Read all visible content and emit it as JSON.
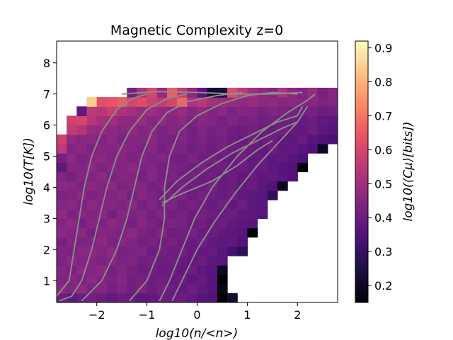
{
  "chart_data": {
    "type": "heatmap",
    "title": "Magnetic Complexity z=0",
    "xlabel": "log10(n/<n>)",
    "ylabel": "log10(T[K])",
    "colorbar_label": "log10(⟨Cμ⟩[bits])",
    "colormap": "magma",
    "xlim": [
      -2.8,
      2.8
    ],
    "ylim": [
      0.3,
      8.7
    ],
    "clim": [
      0.15,
      0.92
    ],
    "x_ticks": [
      -2,
      -1,
      0,
      1,
      2
    ],
    "x_tick_labels": [
      "−2",
      "−1",
      "0",
      "1",
      "2"
    ],
    "y_ticks": [
      1,
      2,
      3,
      4,
      5,
      6,
      7,
      8
    ],
    "y_tick_labels": [
      "1",
      "2",
      "3",
      "4",
      "5",
      "6",
      "7",
      "8"
    ],
    "colorbar_ticks": [
      0.2,
      0.3,
      0.4,
      0.5,
      0.6,
      0.7,
      0.8,
      0.9
    ],
    "colorbar_tick_labels": [
      "0.2",
      "0.3",
      "0.4",
      "0.5",
      "0.6",
      "0.7",
      "0.8",
      "0.9"
    ],
    "bin_x_start": -2.8,
    "bin_x_width": 0.2,
    "bin_y_start": 0.3,
    "bin_y_width": 0.3,
    "rows": [
      {
        "T": 0.45,
        "i0": 0,
        "v": [
          0.4,
          0.38,
          0.4,
          0.42,
          0.4,
          0.38,
          0.4,
          0.39,
          0.37,
          0.38,
          0.4,
          0.39,
          0.4,
          0.38,
          0.36,
          0.35,
          0.15,
          0.22
        ]
      },
      {
        "T": 0.75,
        "i0": 0,
        "v": [
          0.46,
          0.44,
          0.46,
          0.43,
          0.45,
          0.42,
          0.44,
          0.41,
          0.43,
          0.4,
          0.42,
          0.4,
          0.38,
          0.4,
          0.38,
          0.36,
          0.18
        ]
      },
      {
        "T": 1.05,
        "i0": 0,
        "v": [
          0.44,
          0.45,
          0.43,
          0.46,
          0.44,
          0.43,
          0.45,
          0.41,
          0.42,
          0.4,
          0.41,
          0.39,
          0.4,
          0.37,
          0.39,
          0.36,
          0.15
        ]
      },
      {
        "T": 1.35,
        "i0": 0,
        "v": [
          0.45,
          0.43,
          0.46,
          0.44,
          0.46,
          0.42,
          0.44,
          0.42,
          0.4,
          0.41,
          0.39,
          0.4,
          0.38,
          0.4,
          0.37,
          0.36,
          0.2
        ]
      },
      {
        "T": 1.65,
        "i0": 0,
        "v": [
          0.43,
          0.46,
          0.44,
          0.45,
          0.43,
          0.45,
          0.43,
          0.44,
          0.41,
          0.42,
          0.4,
          0.41,
          0.39,
          0.38,
          0.4,
          0.37,
          0.36
        ]
      },
      {
        "T": 1.95,
        "i0": 0,
        "v": [
          0.44,
          0.43,
          0.45,
          0.46,
          0.44,
          0.46,
          0.42,
          0.43,
          0.44,
          0.4,
          0.42,
          0.4,
          0.41,
          0.39,
          0.38,
          0.39,
          0.36,
          0.32,
          0.28
        ]
      },
      {
        "T": 2.25,
        "i0": 0,
        "v": [
          0.42,
          0.45,
          0.43,
          0.44,
          0.46,
          0.43,
          0.45,
          0.44,
          0.42,
          0.43,
          0.41,
          0.42,
          0.4,
          0.39,
          0.41,
          0.38,
          0.37,
          0.38,
          0.35
        ]
      },
      {
        "T": 2.55,
        "i0": 0,
        "v": [
          0.46,
          0.44,
          0.46,
          0.42,
          0.45,
          0.44,
          0.43,
          0.46,
          0.43,
          0.42,
          0.44,
          0.4,
          0.41,
          0.42,
          0.39,
          0.4,
          0.38,
          0.37,
          0.36,
          0.15
        ]
      },
      {
        "T": 2.85,
        "i0": 0,
        "v": [
          0.44,
          0.46,
          0.42,
          0.45,
          0.43,
          0.46,
          0.44,
          0.42,
          0.45,
          0.43,
          0.41,
          0.43,
          0.42,
          0.4,
          0.41,
          0.39,
          0.4,
          0.38,
          0.37,
          0.36
        ]
      },
      {
        "T": 3.15,
        "i0": 0,
        "v": [
          0.47,
          0.43,
          0.45,
          0.44,
          0.46,
          0.42,
          0.45,
          0.43,
          0.44,
          0.42,
          0.44,
          0.41,
          0.42,
          0.4,
          0.42,
          0.4,
          0.39,
          0.4,
          0.38,
          0.37,
          0.36
        ]
      },
      {
        "T": 3.45,
        "i0": 0,
        "v": [
          0.45,
          0.46,
          0.43,
          0.46,
          0.44,
          0.45,
          0.43,
          0.46,
          0.42,
          0.44,
          0.42,
          0.43,
          0.4,
          0.42,
          0.41,
          0.39,
          0.41,
          0.38,
          0.4,
          0.37,
          0.36
        ]
      },
      {
        "T": 3.75,
        "i0": 0,
        "v": [
          0.43,
          0.44,
          0.46,
          0.43,
          0.45,
          0.44,
          0.46,
          0.42,
          0.45,
          0.43,
          0.41,
          0.42,
          0.43,
          0.4,
          0.42,
          0.4,
          0.39,
          0.41,
          0.38,
          0.37,
          0.36,
          0.28
        ]
      },
      {
        "T": 4.05,
        "i0": 0,
        "v": [
          0.46,
          0.45,
          0.43,
          0.46,
          0.44,
          0.46,
          0.43,
          0.45,
          0.44,
          0.42,
          0.43,
          0.41,
          0.42,
          0.41,
          0.4,
          0.42,
          0.39,
          0.4,
          0.38,
          0.39,
          0.37,
          0.35,
          0.2
        ]
      },
      {
        "T": 4.35,
        "i0": 0,
        "v": [
          0.44,
          0.42,
          0.45,
          0.44,
          0.46,
          0.43,
          0.45,
          0.44,
          0.42,
          0.45,
          0.42,
          0.43,
          0.41,
          0.42,
          0.4,
          0.41,
          0.39,
          0.4,
          0.38,
          0.39,
          0.37,
          0.38,
          0.36,
          0.35
        ]
      },
      {
        "T": 4.65,
        "i0": 0,
        "v": [
          0.38,
          0.45,
          0.44,
          0.46,
          0.43,
          0.45,
          0.44,
          0.46,
          0.43,
          0.44,
          0.42,
          0.43,
          0.42,
          0.4,
          0.42,
          0.4,
          0.41,
          0.39,
          0.4,
          0.38,
          0.39,
          0.37,
          0.36,
          0.35,
          0.14
        ]
      },
      {
        "T": 4.95,
        "i0": 0,
        "v": [
          0.42,
          0.46,
          0.43,
          0.45,
          0.46,
          0.44,
          0.45,
          0.43,
          0.45,
          0.43,
          0.44,
          0.42,
          0.41,
          0.43,
          0.41,
          0.42,
          0.4,
          0.39,
          0.41,
          0.38,
          0.39,
          0.37,
          0.38,
          0.36,
          0.34
        ]
      },
      {
        "T": 5.25,
        "i0": 0,
        "v": [
          0.55,
          0.44,
          0.46,
          0.43,
          0.45,
          0.44,
          0.46,
          0.44,
          0.43,
          0.45,
          0.42,
          0.44,
          0.43,
          0.41,
          0.42,
          0.4,
          0.42,
          0.4,
          0.41,
          0.39,
          0.38,
          0.4,
          0.37,
          0.38,
          0.36,
          0.34,
          0.2
        ]
      },
      {
        "T": 5.55,
        "i0": 0,
        "v": [
          0.58,
          0.47,
          0.45,
          0.46,
          0.44,
          0.46,
          0.43,
          0.45,
          0.44,
          0.46,
          0.43,
          0.42,
          0.44,
          0.42,
          0.43,
          0.41,
          0.42,
          0.4,
          0.39,
          0.41,
          0.39,
          0.4,
          0.38,
          0.37,
          0.39,
          0.36,
          0.34,
          0.33
        ]
      },
      {
        "T": 5.85,
        "i0": 1,
        "v": [
          0.56,
          0.53,
          0.48,
          0.47,
          0.46,
          0.45,
          0.47,
          0.44,
          0.46,
          0.43,
          0.45,
          0.44,
          0.42,
          0.44,
          0.42,
          0.43,
          0.41,
          0.4,
          0.42,
          0.4,
          0.39,
          0.41,
          0.39,
          0.38,
          0.4,
          0.37,
          0.36,
          0.35
        ]
      },
      {
        "T": 6.15,
        "i0": 1,
        "v": [
          0.58,
          0.6,
          0.54,
          0.5,
          0.49,
          0.47,
          0.46,
          0.48,
          0.45,
          0.47,
          0.44,
          0.46,
          0.43,
          0.45,
          0.44,
          0.42,
          0.44,
          0.42,
          0.43,
          0.41,
          0.42,
          0.4,
          0.41,
          0.39,
          0.4,
          0.38,
          0.37,
          0.39,
          0.36,
          0.35
        ]
      },
      {
        "T": 6.45,
        "i0": 2,
        "v": [
          0.38,
          0.55,
          0.54,
          0.57,
          0.52,
          0.5,
          0.48,
          0.49,
          0.47,
          0.46,
          0.48,
          0.45,
          0.47,
          0.44,
          0.46,
          0.43,
          0.45,
          0.44,
          0.42,
          0.44,
          0.43,
          0.42,
          0.41,
          0.42,
          0.4,
          0.41,
          0.39,
          0.38,
          0.4,
          0.37,
          0.36
        ]
      },
      {
        "T": 6.75,
        "i0": 3,
        "v": [
          0.84,
          0.63,
          0.64,
          0.66,
          0.6,
          0.62,
          0.58,
          0.56,
          0.6,
          0.67,
          0.52,
          0.54,
          0.5,
          0.49,
          0.48,
          0.47,
          0.48,
          0.46,
          0.47,
          0.45,
          0.46,
          0.44,
          0.45,
          0.43,
          0.44,
          0.42,
          0.43,
          0.41,
          0.4,
          0.39
        ]
      },
      {
        "T": 7.05,
        "i0": 7,
        "v": [
          0.42,
          0.52,
          0.6,
          0.48,
          0.66,
          0.56,
          0.46,
          0.36,
          0.22,
          0.24,
          0.62,
          0.56,
          0.5,
          0.47,
          0.45,
          0.52,
          0.46,
          0.44,
          0.48,
          0.42,
          0.45,
          0.4,
          0.44,
          0.38,
          0.34,
          0.32,
          0.3,
          0.28
        ]
      }
    ],
    "contours": [
      [
        [
          -2.8,
          0.5
        ],
        [
          -2.55,
          1.0
        ],
        [
          -2.45,
          2.0
        ],
        [
          -2.35,
          3.0
        ],
        [
          -2.25,
          4.0
        ],
        [
          -2.1,
          5.0
        ],
        [
          -1.9,
          5.8
        ],
        [
          -1.6,
          6.5
        ],
        [
          -1.3,
          6.85
        ],
        [
          -1.0,
          7.0
        ]
      ],
      [
        [
          -2.75,
          0.35
        ],
        [
          -2.5,
          0.5
        ],
        [
          -2.3,
          1.0
        ],
        [
          -2.1,
          2.0
        ],
        [
          -1.95,
          3.0
        ],
        [
          -1.8,
          4.0
        ],
        [
          -1.6,
          5.0
        ],
        [
          -1.35,
          5.8
        ],
        [
          -1.0,
          6.5
        ],
        [
          -0.6,
          6.85
        ],
        [
          -0.2,
          7.0
        ]
      ],
      [
        [
          -2.3,
          0.35
        ],
        [
          -1.9,
          1.0
        ],
        [
          -1.6,
          2.0
        ],
        [
          -1.4,
          3.0
        ],
        [
          -1.25,
          4.0
        ],
        [
          -1.1,
          5.0
        ],
        [
          -0.9,
          5.8
        ],
        [
          -0.6,
          6.4
        ],
        [
          -0.2,
          6.75
        ],
        [
          0.4,
          6.95
        ],
        [
          0.9,
          7.05
        ]
      ],
      [
        [
          -1.35,
          0.35
        ],
        [
          -1.0,
          1.0
        ],
        [
          -0.75,
          2.0
        ],
        [
          -0.65,
          3.0
        ],
        [
          -0.65,
          4.0
        ],
        [
          -0.55,
          5.0
        ],
        [
          -0.35,
          5.8
        ],
        [
          0.0,
          6.3
        ],
        [
          0.5,
          6.7
        ],
        [
          1.0,
          6.95
        ],
        [
          1.5,
          7.05
        ],
        [
          2.0,
          7.0
        ]
      ],
      [
        [
          -1.5,
          7.0
        ],
        [
          -0.8,
          7.08
        ],
        [
          0.0,
          7.05
        ],
        [
          0.8,
          7.0
        ],
        [
          1.5,
          7.0
        ],
        [
          2.1,
          7.05
        ]
      ],
      [
        [
          -0.75,
          0.35
        ],
        [
          -0.55,
          1.0
        ],
        [
          -0.3,
          2.0
        ],
        [
          -0.05,
          3.0
        ],
        [
          0.3,
          4.0
        ],
        [
          0.8,
          5.0
        ],
        [
          1.3,
          5.8
        ],
        [
          1.8,
          6.4
        ],
        [
          2.2,
          6.8
        ],
        [
          2.35,
          7.0
        ]
      ],
      [
        [
          -0.5,
          0.35
        ],
        [
          -0.3,
          1.0
        ],
        [
          0.0,
          2.0
        ],
        [
          0.35,
          2.9
        ],
        [
          0.75,
          3.8
        ],
        [
          1.2,
          4.7
        ],
        [
          1.6,
          5.4
        ],
        [
          2.0,
          6.1
        ],
        [
          2.2,
          6.6
        ]
      ],
      [
        [
          -0.75,
          3.6
        ],
        [
          -0.4,
          4.2
        ],
        [
          0.1,
          4.8
        ],
        [
          0.6,
          5.3
        ],
        [
          1.1,
          5.7
        ],
        [
          1.6,
          6.1
        ],
        [
          2.0,
          6.3
        ],
        [
          2.1,
          6.6
        ]
      ],
      [
        [
          -0.7,
          3.4
        ],
        [
          -0.3,
          4.0
        ],
        [
          0.2,
          4.6
        ],
        [
          0.7,
          5.1
        ],
        [
          1.2,
          5.5
        ],
        [
          1.7,
          5.9
        ],
        [
          2.0,
          6.1
        ]
      ],
      [
        [
          -0.7,
          3.5
        ],
        [
          -0.3,
          3.8
        ],
        [
          0.3,
          4.2
        ],
        [
          0.8,
          4.7
        ],
        [
          1.2,
          5.2
        ],
        [
          1.5,
          5.5
        ]
      ]
    ]
  }
}
